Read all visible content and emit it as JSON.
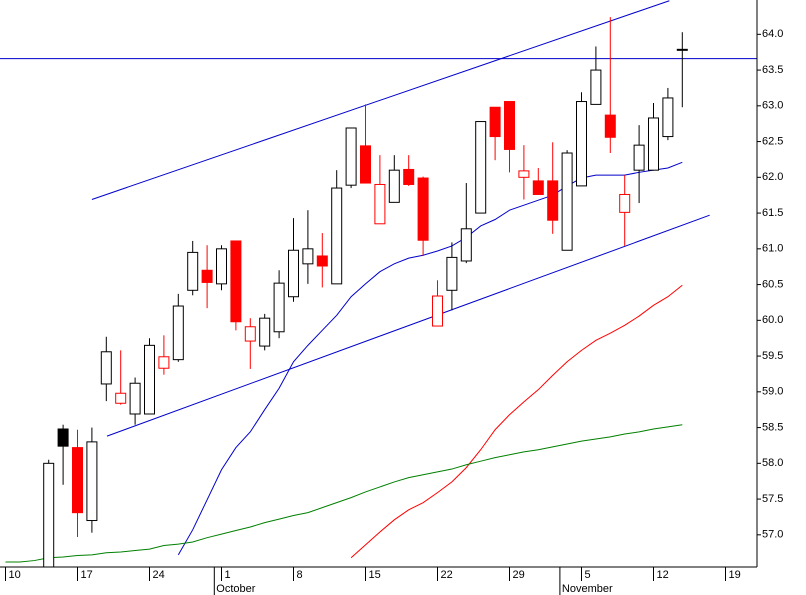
{
  "chart_data": {
    "type": "candlestick",
    "categories": [
      "10",
      null,
      null,
      null,
      null,
      "17",
      null,
      null,
      null,
      null,
      "24",
      null,
      null,
      null,
      null,
      "1",
      null,
      null,
      null,
      null,
      "8",
      null,
      null,
      null,
      null,
      "15",
      null,
      null,
      null,
      null,
      "22",
      null,
      null,
      null,
      null,
      "29",
      null,
      null,
      null,
      null,
      "5",
      null,
      null,
      null,
      null,
      "12",
      null,
      null,
      null,
      null,
      "19",
      null,
      null
    ],
    "month_labels": [
      null,
      null,
      null,
      null,
      null,
      null,
      null,
      null,
      null,
      null,
      null,
      null,
      null,
      null,
      null,
      "October",
      null,
      null,
      null,
      null,
      null,
      null,
      null,
      null,
      null,
      null,
      null,
      null,
      null,
      null,
      null,
      null,
      null,
      null,
      null,
      null,
      null,
      null,
      null,
      "November",
      null,
      null,
      null,
      null,
      null,
      null,
      null,
      null,
      null,
      null,
      null,
      null,
      null
    ],
    "open": [
      null,
      null,
      null,
      56.4,
      58.48,
      58.22,
      57.2,
      59.11,
      58.84,
      58.69,
      58.69,
      59.33,
      59.45,
      60.42,
      60.7,
      60.51,
      61.11,
      59.71,
      59.64,
      59.84,
      60.33,
      60.79,
      60.9,
      60.51,
      61.89,
      62.44,
      61.35,
      61.65,
      62.11,
      61.99,
      59.92,
      60.42,
      60.83,
      61.5,
      62.98,
      63.06,
      62.0,
      61.95,
      61.95,
      60.98,
      61.88,
      63.02,
      62.87,
      61.51,
      62.1,
      62.1,
      62.57,
      63.78,
      null,
      null,
      null,
      null,
      null
    ],
    "high": [
      null,
      null,
      null,
      58.05,
      58.54,
      58.47,
      58.5,
      59.77,
      59.58,
      59.2,
      59.75,
      59.79,
      60.37,
      61.11,
      61.05,
      61.05,
      61.11,
      60.03,
      60.09,
      60.7,
      61.43,
      61.54,
      61.22,
      62.1,
      62.69,
      63.02,
      62.31,
      62.31,
      62.31,
      62.01,
      60.56,
      61.09,
      61.92,
      62.78,
      62.98,
      63.06,
      62.45,
      62.13,
      62.49,
      62.38,
      63.19,
      63.83,
      64.24,
      62.03,
      62.73,
      63.04,
      63.25,
      64.03,
      null,
      null,
      null,
      null,
      null
    ],
    "low": [
      null,
      null,
      null,
      56.3,
      57.7,
      56.97,
      57.03,
      58.87,
      58.82,
      58.54,
      58.69,
      59.24,
      59.42,
      60.35,
      60.17,
      60.42,
      59.86,
      59.32,
      59.58,
      59.75,
      60.26,
      60.51,
      60.46,
      60.51,
      61.85,
      61.92,
      61.35,
      61.65,
      61.88,
      60.9,
      59.92,
      60.14,
      60.8,
      61.5,
      62.24,
      62.07,
      61.69,
      61.76,
      61.21,
      60.98,
      61.88,
      63.02,
      62.34,
      61.04,
      61.64,
      62.1,
      62.52,
      62.98,
      null,
      null,
      null,
      null,
      null
    ],
    "close": [
      null,
      null,
      null,
      58.0,
      58.24,
      57.31,
      58.3,
      59.56,
      58.98,
      59.12,
      59.65,
      59.49,
      60.2,
      60.95,
      60.53,
      61.0,
      59.98,
      59.91,
      60.03,
      60.52,
      60.98,
      61.0,
      60.76,
      61.85,
      62.69,
      61.92,
      61.9,
      62.1,
      61.9,
      61.12,
      60.34,
      60.88,
      61.28,
      62.78,
      62.57,
      62.39,
      62.09,
      61.76,
      61.4,
      62.34,
      63.06,
      63.5,
      62.56,
      61.76,
      62.45,
      62.83,
      63.11,
      63.79,
      null,
      null,
      null,
      null,
      null
    ],
    "up_color": "#000000",
    "down_color": "#ff0000",
    "series": [
      {
        "color": "#0000cc",
        "values": [
          null,
          null,
          null,
          null,
          null,
          null,
          null,
          null,
          null,
          null,
          null,
          null,
          56.72,
          57.07,
          57.49,
          57.91,
          58.22,
          58.44,
          58.75,
          59.05,
          59.42,
          59.65,
          59.86,
          60.07,
          60.33,
          60.51,
          60.68,
          60.79,
          60.87,
          60.91,
          60.97,
          61.04,
          61.16,
          61.32,
          61.41,
          61.54,
          61.61,
          61.68,
          61.75,
          61.88,
          61.99,
          62.03,
          62.03,
          62.03,
          62.07,
          62.1,
          62.13,
          62.21,
          null,
          null,
          null,
          null,
          null
        ]
      },
      {
        "color": "#ff0000",
        "values": [
          null,
          null,
          null,
          null,
          null,
          null,
          null,
          null,
          null,
          null,
          null,
          null,
          null,
          null,
          null,
          null,
          null,
          null,
          null,
          null,
          null,
          null,
          null,
          null,
          56.68,
          56.86,
          57.04,
          57.21,
          57.35,
          57.45,
          57.59,
          57.74,
          57.94,
          58.19,
          58.47,
          58.68,
          58.86,
          59.03,
          59.23,
          59.42,
          59.58,
          59.72,
          59.82,
          59.93,
          60.06,
          60.21,
          60.33,
          60.49,
          null,
          null,
          null,
          null,
          null
        ]
      },
      {
        "color": "#008000",
        "values": [
          56.62,
          56.62,
          56.64,
          56.68,
          56.69,
          56.71,
          56.72,
          56.75,
          56.76,
          56.78,
          56.8,
          56.85,
          56.87,
          56.9,
          56.96,
          57.01,
          57.06,
          57.11,
          57.17,
          57.22,
          57.27,
          57.31,
          57.38,
          57.45,
          57.52,
          57.6,
          57.67,
          57.74,
          57.8,
          57.84,
          57.88,
          57.92,
          57.98,
          58.03,
          58.08,
          58.12,
          58.16,
          58.19,
          58.23,
          58.27,
          58.31,
          58.34,
          58.37,
          58.41,
          58.44,
          58.48,
          58.51,
          58.54,
          null,
          null,
          null,
          null,
          null
        ]
      }
    ],
    "trendlines": [
      {
        "color": "#0000cc",
        "x": [
          6.0,
          46.1
        ],
        "values": [
          61.69,
          64.47
        ]
      },
      {
        "color": "#0000cc",
        "x": [
          7.05,
          48.9
        ],
        "values": [
          58.38,
          61.47
        ]
      }
    ],
    "hlines": [
      {
        "color": "#0000cc",
        "value": 63.66
      }
    ],
    "ylim": [
      56.55,
      64.48
    ],
    "yticks": [
      {
        "value": 57,
        "label": "57.0"
      },
      57.5,
      {
        "value": 58,
        "label": "58.0"
      },
      58.5,
      {
        "value": 59,
        "label": "59.0"
      },
      59.5,
      {
        "value": 60,
        "label": "60.0"
      },
      60.5,
      {
        "value": 61,
        "label": "61.0"
      },
      61.5,
      {
        "value": 62,
        "label": "62.0"
      },
      62.5,
      {
        "value": 63,
        "label": "63.0"
      },
      63.5,
      {
        "value": 64,
        "label": "64.0"
      }
    ]
  }
}
